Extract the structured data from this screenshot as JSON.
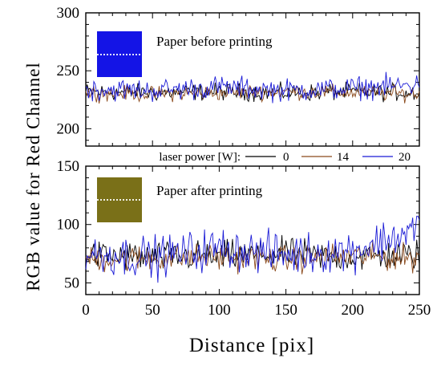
{
  "chart_data": {
    "type": "line",
    "ylabel": "RGB value for Red Channel",
    "xlabel": "Distance [pix]",
    "legend": {
      "title": "laser power [W]:",
      "placement": "between-panels",
      "entries": [
        {
          "label": "0",
          "color": "#000000"
        },
        {
          "label": "14",
          "color": "#8b4a1c"
        },
        {
          "label": "20",
          "color": "#1a1ad6"
        }
      ]
    },
    "xlim": [
      0,
      250
    ],
    "xticks": [
      "0",
      "50",
      "100",
      "150",
      "200",
      "250"
    ],
    "panels": [
      {
        "annotation": "Paper before printing",
        "swatch_color": "#1414e6",
        "ylim": [
          185,
          300
        ],
        "yticks": [
          "200",
          "250",
          "300"
        ],
        "series": [
          {
            "name": "0",
            "color": "#000000",
            "mean": 232,
            "amp": 4.5,
            "x": [
              0,
              50,
              100,
              150,
              200,
              250
            ],
            "y": [
              232,
              231,
              232,
              231,
              232,
              231
            ]
          },
          {
            "name": "14",
            "color": "#8b4a1c",
            "mean": 231,
            "amp": 4,
            "x": [
              0,
              50,
              100,
              150,
              200,
              250
            ],
            "y": [
              231,
              230,
              231,
              232,
              231,
              230
            ]
          },
          {
            "name": "20",
            "color": "#1a1ad6",
            "mean": 234,
            "amp": 6,
            "x": [
              0,
              50,
              100,
              150,
              200,
              250
            ],
            "y": [
              234,
              233,
              236,
              233,
              235,
              238
            ]
          }
        ]
      },
      {
        "annotation": "Paper after printing",
        "swatch_color": "#7a7018",
        "ylim": [
          40,
          150
        ],
        "yticks": [
          "50",
          "100",
          "150"
        ],
        "series": [
          {
            "name": "0",
            "color": "#000000",
            "mean": 73,
            "amp": 8,
            "x": [
              0,
              50,
              100,
              150,
              200,
              250
            ],
            "y": [
              74,
              72,
              73,
              75,
              72,
              74
            ]
          },
          {
            "name": "14",
            "color": "#8b4a1c",
            "mean": 71,
            "amp": 7,
            "x": [
              0,
              50,
              100,
              150,
              200,
              250
            ],
            "y": [
              70,
              71,
              72,
              70,
              73,
              71
            ]
          },
          {
            "name": "20",
            "color": "#1a1ad6",
            "mean": 74,
            "amp": 11,
            "x": [
              0,
              50,
              100,
              150,
              200,
              250
            ],
            "y": [
              75,
              72,
              80,
              74,
              78,
              96
            ]
          }
        ]
      }
    ]
  }
}
